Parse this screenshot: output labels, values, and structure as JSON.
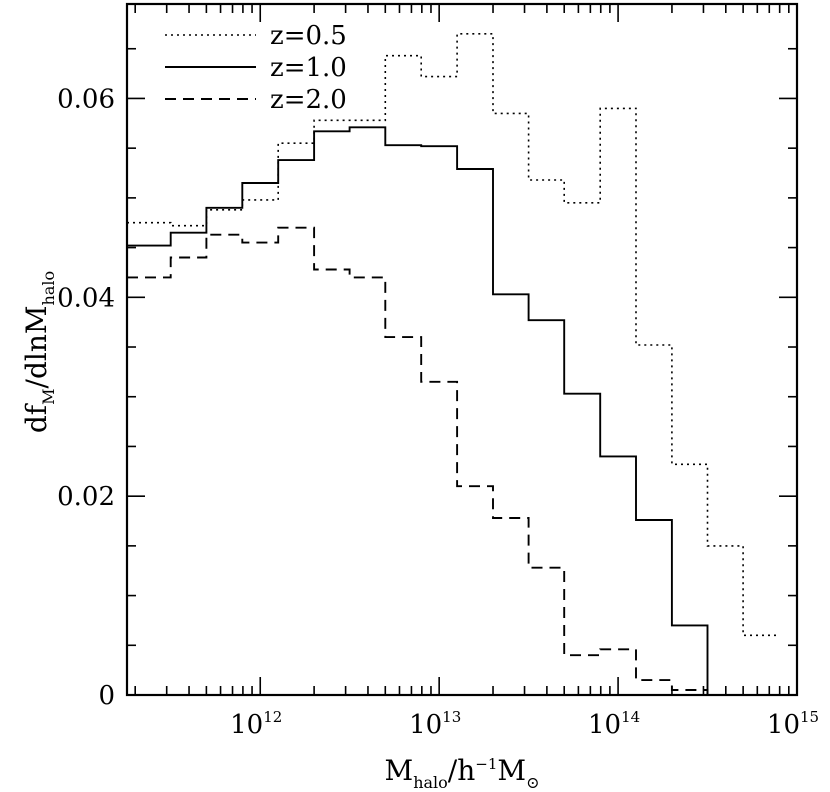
{
  "chart_data": {
    "type": "histogram",
    "x_scale": "log",
    "xlim": [
      180000000000.0,
      1000000000000000.0
    ],
    "ylim": [
      0,
      0.0695
    ],
    "bin_edges": [
      180000000000.0,
      316000000000.0,
      500000000000.0,
      794000000000.0,
      1260000000000.0,
      2000000000000.0,
      3160000000000.0,
      5000000000000.0,
      7940000000000.0,
      12600000000000.0,
      20000000000000.0,
      31600000000000.0,
      50000000000000.0,
      79400000000000.0,
      126000000000000.0,
      200000000000000.0,
      316000000000000.0,
      500000000000000.0,
      794000000000000.0
    ],
    "x_ticks": [
      {
        "value": 1000000000000.0,
        "base": "10",
        "exp": "12"
      },
      {
        "value": 10000000000000.0,
        "base": "10",
        "exp": "13"
      },
      {
        "value": 100000000000000.0,
        "base": "10",
        "exp": "14"
      },
      {
        "value": 1000000000000000.0,
        "base": "10",
        "exp": "15"
      }
    ],
    "y_ticks": [
      {
        "value": 0,
        "label": "0"
      },
      {
        "value": 0.02,
        "label": "0.02"
      },
      {
        "value": 0.04,
        "label": "0.04"
      },
      {
        "value": 0.06,
        "label": "0.06"
      }
    ],
    "xlabel": {
      "main": "M",
      "sub": "halo",
      "mid": "/h",
      "sup": "−1",
      "end": "M",
      "sub2": "⊙"
    },
    "ylabel": {
      "main": "df",
      "sub": "M",
      "mid": "/dlnM",
      "sub2": "halo"
    },
    "series": [
      {
        "name": "z=0.5",
        "style": "dotted",
        "values": [
          0.0475,
          0.0472,
          0.0488,
          0.0498,
          0.0555,
          0.0578,
          0.0578,
          0.0643,
          0.0622,
          0.0665,
          0.0585,
          0.0518,
          0.0495,
          0.059,
          0.0352,
          0.0232,
          0.015,
          0.006
        ]
      },
      {
        "name": "z=1.0",
        "style": "solid",
        "values": [
          0.0452,
          0.0465,
          0.049,
          0.0515,
          0.0538,
          0.0567,
          0.0571,
          0.0553,
          0.0552,
          0.0529,
          0.0403,
          0.0377,
          0.0303,
          0.024,
          0.0176,
          0.007,
          0.0,
          0.0
        ]
      },
      {
        "name": "z=2.0",
        "style": "dashed",
        "values": [
          0.042,
          0.044,
          0.0463,
          0.0455,
          0.047,
          0.0428,
          0.042,
          0.036,
          0.0315,
          0.021,
          0.0178,
          0.0128,
          0.004,
          0.0046,
          0.0015,
          0.0005,
          0.0,
          0.0
        ]
      }
    ],
    "legend_placement": "top-left",
    "grid": false
  }
}
